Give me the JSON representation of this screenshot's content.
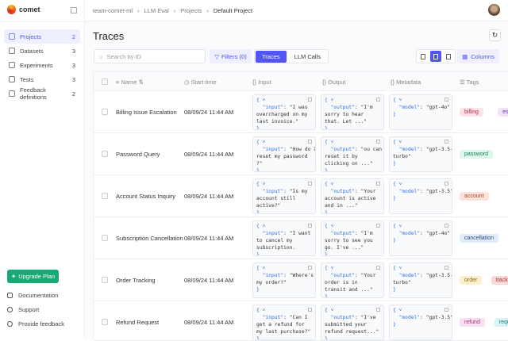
{
  "app": {
    "name": "comet"
  },
  "sidebar": {
    "items": [
      {
        "label": "Projects",
        "count": "2",
        "active": true
      },
      {
        "label": "Datasets",
        "count": "3"
      },
      {
        "label": "Experiments",
        "count": "3"
      },
      {
        "label": "Tests",
        "count": "3"
      },
      {
        "label": "Feedback definitions",
        "count": "2"
      }
    ],
    "upgrade": "Upgrade Plan",
    "footer": [
      "Documentation",
      "Support",
      "Provide feedback"
    ]
  },
  "breadcrumb": [
    "team-comet-ml",
    "LLM Eval",
    "Projects",
    "Default Project"
  ],
  "page": {
    "title": "Traces"
  },
  "toolbar": {
    "search_placeholder": "Search by ID",
    "filters": "Filters (0)",
    "tabs": [
      "Traces",
      "LLM Calls"
    ],
    "active_tab": "Traces",
    "columns": "Columns"
  },
  "table": {
    "headers": [
      "Name",
      "Start time",
      "Input",
      "Output",
      "Metadata",
      "Tags"
    ],
    "rows": [
      {
        "name": "Billing Issue Escalation",
        "time": "08/09/24 11:44 AM",
        "input": "\"I was\novercharged on my\nlast invoice.\"",
        "output": "\"I'm\nsorry to hear\nthat. Let ...\"",
        "model": "\"gpt-4o\"",
        "tags": [
          {
            "t": "billing",
            "bg": "#fde2e7",
            "c": "#b03050"
          },
          {
            "t": "escalation",
            "bg": "#efe3fb",
            "c": "#7a3fb8"
          }
        ]
      },
      {
        "name": "Password Query",
        "time": "08/09/24 11:44 AM",
        "input": "\"How do I\nreset my password\n?\"",
        "output": "\"ou can\nreset it by\nclicking on ...\"",
        "model": "\"gpt-3.5-\nturbo\"",
        "tags": [
          {
            "t": "password",
            "bg": "#dcf7ec",
            "c": "#237a55"
          }
        ]
      },
      {
        "name": "Account Status Inquiry",
        "time": "08/09/24 11:44 AM",
        "input": "\"Is my\naccount still\nactive?\"",
        "output": "\"Your\naccount is active\nand in ...\"",
        "model": "\"gpt-3.5\"",
        "tags": [
          {
            "t": "account",
            "bg": "#fde3da",
            "c": "#a64a2a"
          }
        ]
      },
      {
        "name": "Subscription Cancellation",
        "time": "08/09/24 11:44 AM",
        "input": "\"I want\nto cancel my\nsubscription.",
        "output": "\"I'm\nsorry to see you\ngo. I've ...\"",
        "model": "\"gpt-4o\"",
        "tags": [
          {
            "t": "cancellation",
            "bg": "#e1ecfb",
            "c": "#2c4f80"
          }
        ]
      },
      {
        "name": "Order Tracking",
        "time": "08/09/24 11:44 AM",
        "input": "\"Where's\nmy order?\"",
        "output": "\"Your\norder is in\ntransit and ...\"",
        "model": "\"gpt-3.5-\nturbo\"",
        "tags": [
          {
            "t": "order",
            "bg": "#fcf0cc",
            "c": "#8a6a10"
          },
          {
            "t": "tracking",
            "bg": "#fbd7d7",
            "c": "#a33"
          }
        ]
      },
      {
        "name": "Refund Request",
        "time": "08/09/24 11:44 AM",
        "input": "\"Can I\nget a refund for\nmy last purchase?\"",
        "output": "\"I've\nsubmitted your\nrefund request...\"",
        "model": "\"gpt-3.5\"",
        "tags": [
          {
            "t": "refund",
            "bg": "#fbdff0",
            "c": "#a0307a"
          },
          {
            "t": "request",
            "bg": "#d8f4f7",
            "c": "#1f7a85"
          }
        ]
      }
    ]
  }
}
